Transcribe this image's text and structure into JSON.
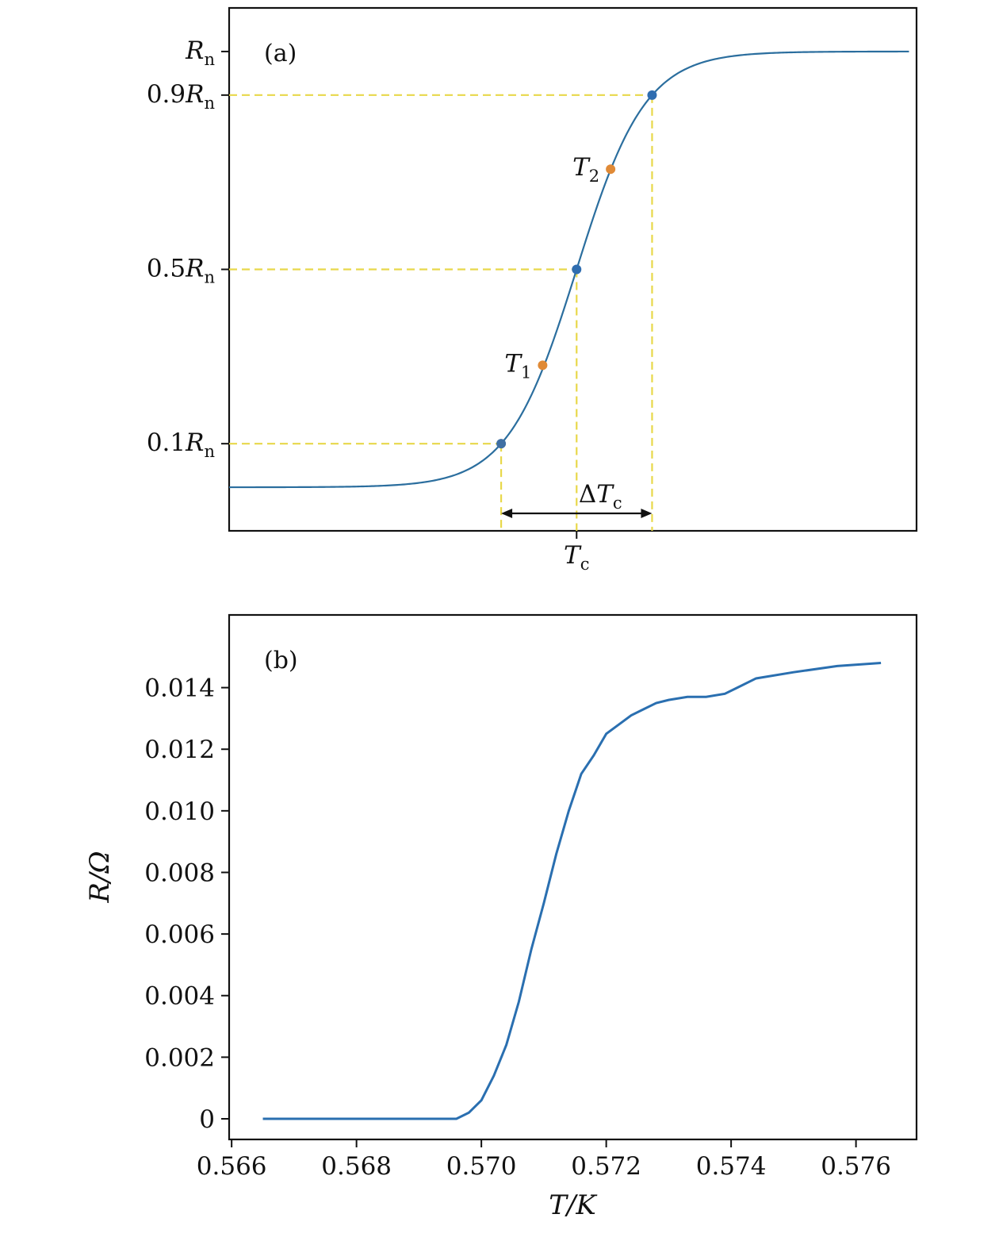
{
  "chart_data": [
    {
      "type": "line",
      "panel_label": "(a)",
      "yticks": [
        {
          "label": "R",
          "sub": "n",
          "value": 1.0
        },
        {
          "label": "0.9R",
          "sub": "n",
          "value": 0.9
        },
        {
          "label": "0.5R",
          "sub": "n",
          "value": 0.5
        },
        {
          "label": "0.1R",
          "sub": "n",
          "value": 0.1
        }
      ],
      "xticks": [
        {
          "label": "T",
          "sub": "c",
          "value": 0.0
        }
      ],
      "xlim": [
        -4.6,
        4.5
      ],
      "ylim": [
        -0.1,
        1.1
      ],
      "curve": {
        "low": 0.0,
        "high": 1.0,
        "center": 0.0,
        "width": 0.455
      },
      "guides": [
        {
          "x": -0.999,
          "y": 0.1
        },
        {
          "x": 0.0,
          "y": 0.5
        },
        {
          "x": 0.999,
          "y": 0.9
        }
      ],
      "points": [
        {
          "name": "",
          "x": -0.999,
          "y": 0.1,
          "color": "#3f6fa3"
        },
        {
          "name": "",
          "x": 0.0,
          "y": 0.5,
          "color": "#2f6db0"
        },
        {
          "name": "",
          "x": 0.999,
          "y": 0.9,
          "color": "#2f6db0"
        },
        {
          "name": "T",
          "sub": "1",
          "x": -0.45,
          "y": 0.28,
          "color": "#e08a36"
        },
        {
          "name": "T",
          "sub": "2",
          "x": 0.45,
          "y": 0.73,
          "color": "#e08a36"
        }
      ],
      "span_annotation": {
        "label": "ΔT",
        "sub": "c",
        "x0": -0.999,
        "x1": 0.999,
        "y": -0.06
      },
      "colors": {
        "curve": "#2b6e9e",
        "guide": "#e8d84a",
        "arrow": "#111111"
      }
    },
    {
      "type": "line",
      "panel_label": "(b)",
      "xlabel": "T/K",
      "ylabel": "R/Ω",
      "xlim": [
        0.56596,
        0.57697
      ],
      "ylim": [
        -0.00067,
        0.01636
      ],
      "xticks": [
        "0.566",
        "0.568",
        "0.570",
        "0.572",
        "0.574",
        "0.576"
      ],
      "xtick_values": [
        0.566,
        0.568,
        0.57,
        0.572,
        0.574,
        0.576
      ],
      "yticks": [
        "0",
        "0.002",
        "0.004",
        "0.006",
        "0.008",
        "0.010",
        "0.012",
        "0.014"
      ],
      "ytick_values": [
        0,
        0.002,
        0.004,
        0.006,
        0.008,
        0.01,
        0.012,
        0.014
      ],
      "series": [
        {
          "x": [
            0.5665,
            0.568,
            0.5696,
            0.5698,
            0.57,
            0.5702,
            0.5704,
            0.5706,
            0.5708,
            0.571,
            0.5712,
            0.5714,
            0.5716,
            0.5718,
            0.572,
            0.5722,
            0.5724,
            0.5726,
            0.5728,
            0.573,
            0.5733,
            0.5736,
            0.5739,
            0.5741,
            0.5744,
            0.575,
            0.5757,
            0.5764
          ],
          "y": [
            0.0,
            0.0,
            0.0,
            0.0002,
            0.0006,
            0.0014,
            0.0024,
            0.0038,
            0.0055,
            0.007,
            0.0086,
            0.01,
            0.0112,
            0.0118,
            0.0125,
            0.0128,
            0.0131,
            0.0133,
            0.0135,
            0.0136,
            0.0137,
            0.0137,
            0.0138,
            0.014,
            0.0143,
            0.0145,
            0.0147,
            0.0148
          ]
        }
      ],
      "colors": {
        "line": "#2a6fb0"
      }
    }
  ]
}
